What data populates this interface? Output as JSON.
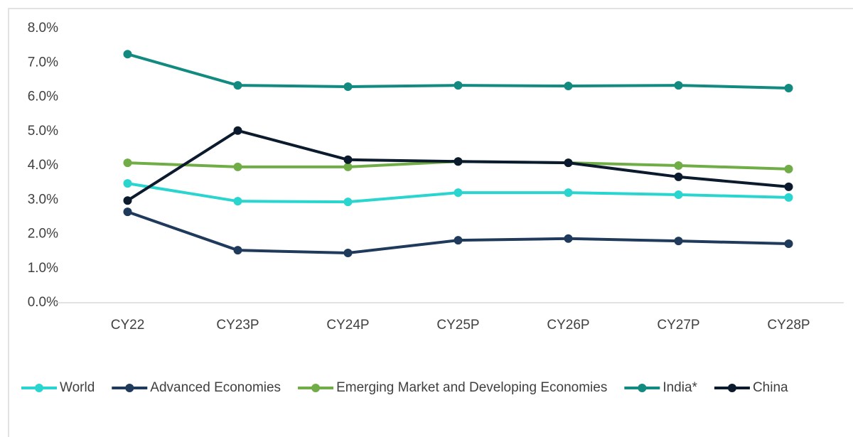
{
  "chart_data": {
    "type": "line",
    "categories": [
      "CY22",
      "CY23P",
      "CY24P",
      "CY25P",
      "CY26P",
      "CY27P",
      "CY28P"
    ],
    "series": [
      {
        "name": "World",
        "color": "#2ad5cf",
        "values": [
          3.48,
          2.96,
          2.94,
          3.21,
          3.21,
          3.15,
          3.07
        ]
      },
      {
        "name": "Advanced Economies",
        "color": "#1f3a5a",
        "values": [
          2.65,
          1.53,
          1.45,
          1.82,
          1.87,
          1.8,
          1.72
        ]
      },
      {
        "name": "Emerging Market and Developing Economies",
        "color": "#70ad47",
        "values": [
          4.08,
          3.96,
          3.96,
          4.12,
          4.08,
          4.0,
          3.9
        ]
      },
      {
        "name": "India*",
        "color": "#128a80",
        "values": [
          7.25,
          6.34,
          6.3,
          6.34,
          6.32,
          6.34,
          6.26
        ]
      },
      {
        "name": "China",
        "color": "#0c1a2e",
        "values": [
          2.98,
          5.02,
          4.17,
          4.12,
          4.08,
          3.67,
          3.38
        ]
      }
    ],
    "ylim": [
      0,
      8
    ],
    "yticks": [
      {
        "value": 0,
        "label": "0.0%"
      },
      {
        "value": 1,
        "label": "1.0%"
      },
      {
        "value": 2,
        "label": "2.0%"
      },
      {
        "value": 3,
        "label": "3.0%"
      },
      {
        "value": 4,
        "label": "4.0%"
      },
      {
        "value": 5,
        "label": "5.0%"
      },
      {
        "value": 6,
        "label": "6.0%"
      },
      {
        "value": 7,
        "label": "7.0%"
      },
      {
        "value": 8,
        "label": "8.0%"
      }
    ],
    "grid": false,
    "legend": "bottom"
  }
}
